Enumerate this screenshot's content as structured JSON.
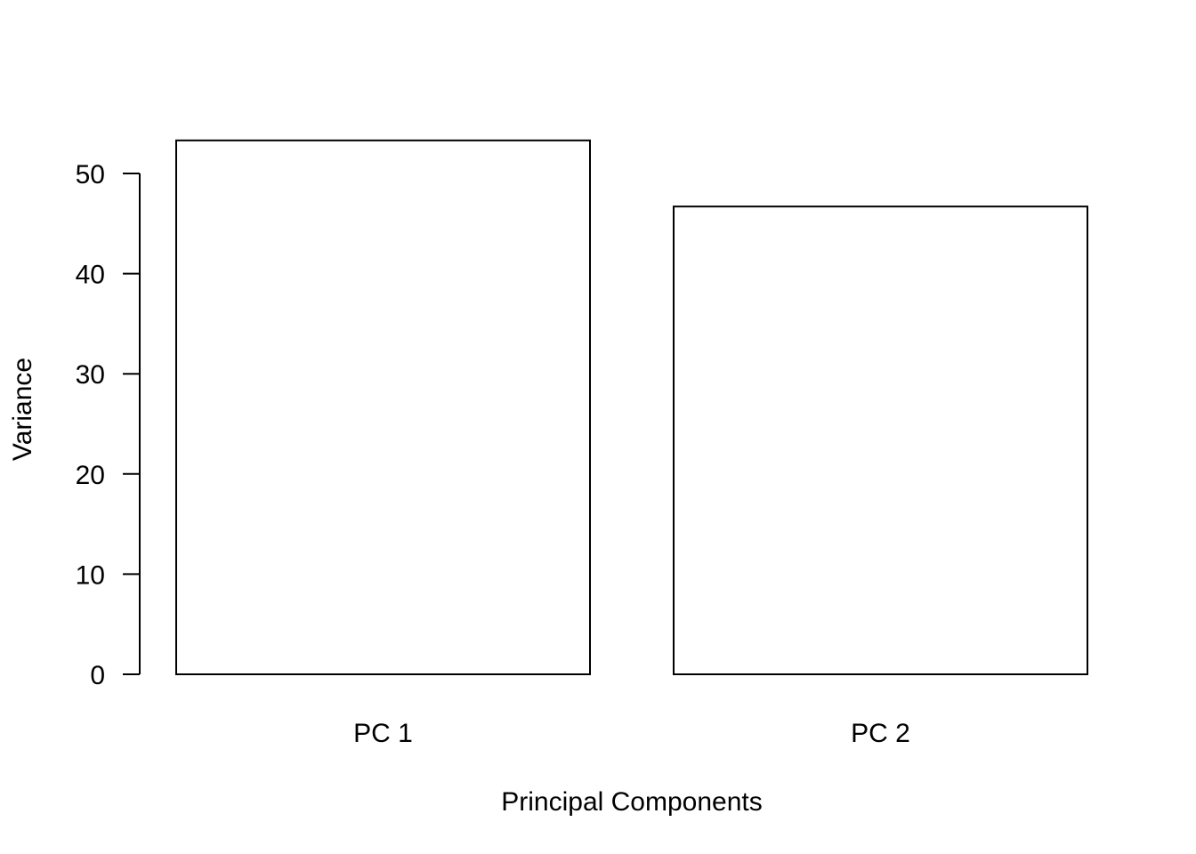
{
  "chart_data": {
    "type": "bar",
    "title": "",
    "xlabel": "Principal Components",
    "ylabel": "Variance",
    "categories": [
      "PC 1",
      "PC 2"
    ],
    "values": [
      53.3,
      46.7
    ],
    "ylim": [
      0,
      53.3
    ],
    "yticks": [
      0,
      10,
      20,
      30,
      40,
      50
    ],
    "grid": false,
    "colors": {
      "bar_fill": "#ffffff",
      "bar_stroke": "#000000"
    }
  }
}
